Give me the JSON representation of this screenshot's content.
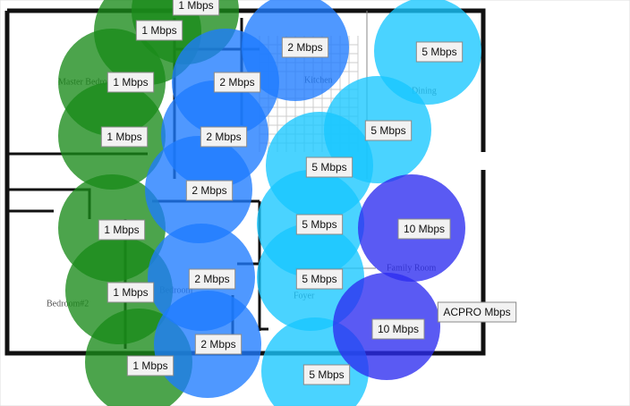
{
  "rooms": [
    "Master Bedroom",
    "Kitchen",
    "Dining",
    "Family Room",
    "Bedroom#2",
    "Bedroom",
    "Foyer"
  ],
  "coverage": [
    {
      "text": "1 Mbps",
      "color": "#1a8a1a"
    },
    {
      "text": "1 Mbps",
      "color": "#1a8a1a"
    },
    {
      "text": "1 Mbps",
      "color": "#1a8a1a"
    },
    {
      "text": "1 Mbps",
      "color": "#1a8a1a"
    },
    {
      "text": "1 Mbps",
      "color": "#1a8a1a"
    },
    {
      "text": "1 Mbps",
      "color": "#1a8a1a"
    },
    {
      "text": "1 Mbps",
      "color": "#1a8a1a"
    },
    {
      "text": "2 Mbps",
      "color": "#1e7bff"
    },
    {
      "text": "2 Mbps",
      "color": "#1e7bff"
    },
    {
      "text": "2 Mbps",
      "color": "#1e7bff"
    },
    {
      "text": "2 Mbps",
      "color": "#1e7bff"
    },
    {
      "text": "2 Mbps",
      "color": "#1e7bff"
    },
    {
      "text": "2 Mbps",
      "color": "#1e7bff"
    },
    {
      "text": "5 Mbps",
      "color": "#17c6ff"
    },
    {
      "text": "5 Mbps",
      "color": "#17c6ff"
    },
    {
      "text": "5 Mbps",
      "color": "#17c6ff"
    },
    {
      "text": "5 Mbps",
      "color": "#17c6ff"
    },
    {
      "text": "5 Mbps",
      "color": "#17c6ff"
    },
    {
      "text": "5 Mbps",
      "color": "#17c6ff"
    },
    {
      "text": "10 Mbps",
      "color": "#2c2cf0"
    },
    {
      "text": "10 Mbps",
      "color": "#2c2cf0"
    }
  ],
  "ap_label": "ACPRO Mbps"
}
